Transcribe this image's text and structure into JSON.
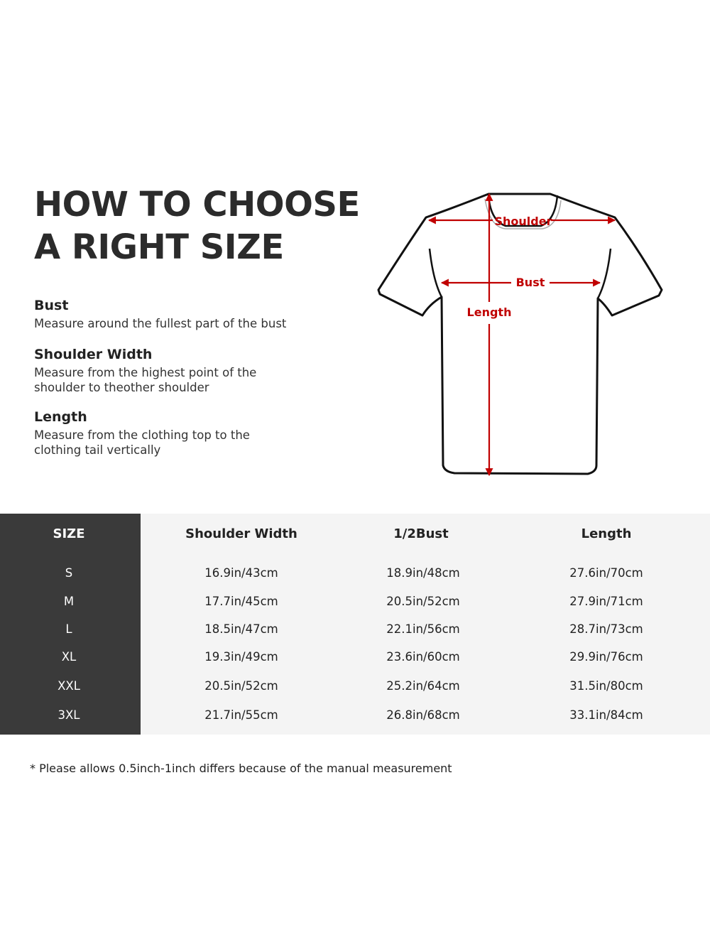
{
  "title": [
    "HOW TO CHOOSE",
    "A RIGHT SIZE"
  ],
  "definitions": [
    {
      "term": "Bust",
      "desc": [
        "Measure around the fullest part of the bust"
      ]
    },
    {
      "term": "Shoulder Width",
      "desc": [
        "Measure from the highest point of the",
        "shoulder to theother shoulder"
      ]
    },
    {
      "term": "Length",
      "desc": [
        "Measure from the clothing top to the",
        "clothing tail vertically"
      ]
    }
  ],
  "diagram": {
    "shoulder_label": "Shoulder",
    "bust_label": "Bust",
    "length_label": "Length",
    "arrow_color": "#c00000"
  },
  "table": {
    "headers": [
      "SIZE",
      "Shoulder Width",
      "1/2Bust",
      "Length"
    ],
    "rows": [
      [
        "S",
        "16.9in/43cm",
        "18.9in/48cm",
        "27.6in/70cm"
      ],
      [
        "M",
        "17.7in/45cm",
        "20.5in/52cm",
        "27.9in/71cm"
      ],
      [
        "L",
        "18.5in/47cm",
        "22.1in/56cm",
        "28.7in/73cm"
      ],
      [
        "XL",
        "19.3in/49cm",
        "23.6in/60cm",
        "29.9in/76cm"
      ],
      [
        "XXL",
        "20.5in/52cm",
        "25.2in/64cm",
        "31.5in/80cm"
      ],
      [
        "3XL",
        "21.7in/55cm",
        "26.8in/68cm",
        "33.1in/84cm"
      ]
    ]
  },
  "note": "* Please allows 0.5inch-1inch differs because of the  manual measurement"
}
